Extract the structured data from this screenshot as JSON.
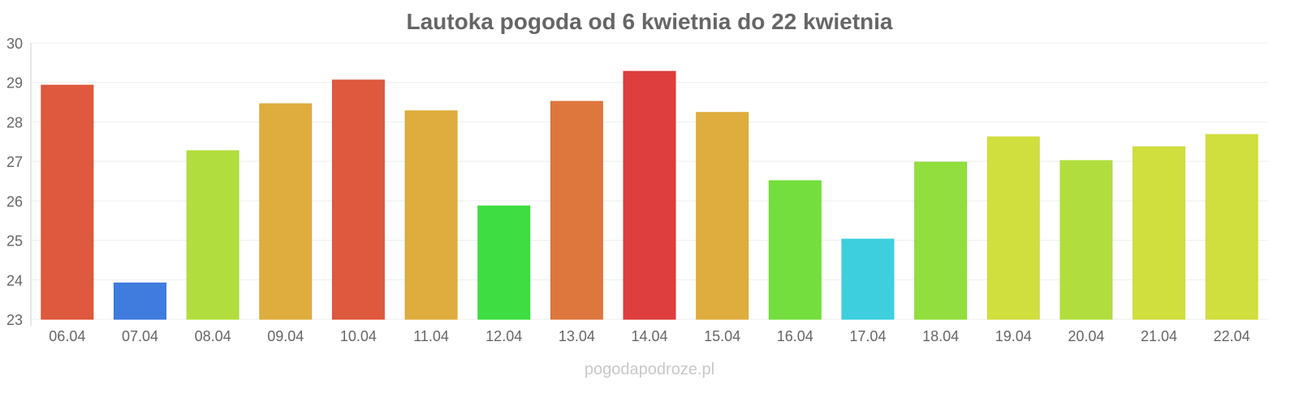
{
  "chart_data": {
    "type": "bar",
    "title": "Lautoka pogoda od 6 kwietnia do 22 kwietnia",
    "xlabel": "",
    "ylabel": "",
    "ylim": [
      23,
      30
    ],
    "yticks": [
      23,
      24,
      25,
      26,
      27,
      28,
      29,
      30
    ],
    "grid": true,
    "categories": [
      "06.04",
      "07.04",
      "08.04",
      "09.04",
      "10.04",
      "11.04",
      "12.04",
      "13.04",
      "14.04",
      "15.04",
      "16.04",
      "17.04",
      "18.04",
      "19.04",
      "20.04",
      "21.04",
      "22.04"
    ],
    "values": [
      28.93,
      23.92,
      27.27,
      28.46,
      29.06,
      28.28,
      25.87,
      28.52,
      29.28,
      28.24,
      26.51,
      25.03,
      26.98,
      27.62,
      27.02,
      27.37,
      27.68
    ],
    "colors": [
      "#dc5034",
      "#3575dc",
      "#addc34",
      "#dca934",
      "#dc5034",
      "#dca934",
      "#34dc38",
      "#dc7034",
      "#dc3434",
      "#dca934",
      "#6cdc34",
      "#34ccdc",
      "#8cdc34",
      "#cddc34",
      "#addc34",
      "#cddc34",
      "#cddc34"
    ]
  },
  "watermark": "pogodapodroze.pl"
}
